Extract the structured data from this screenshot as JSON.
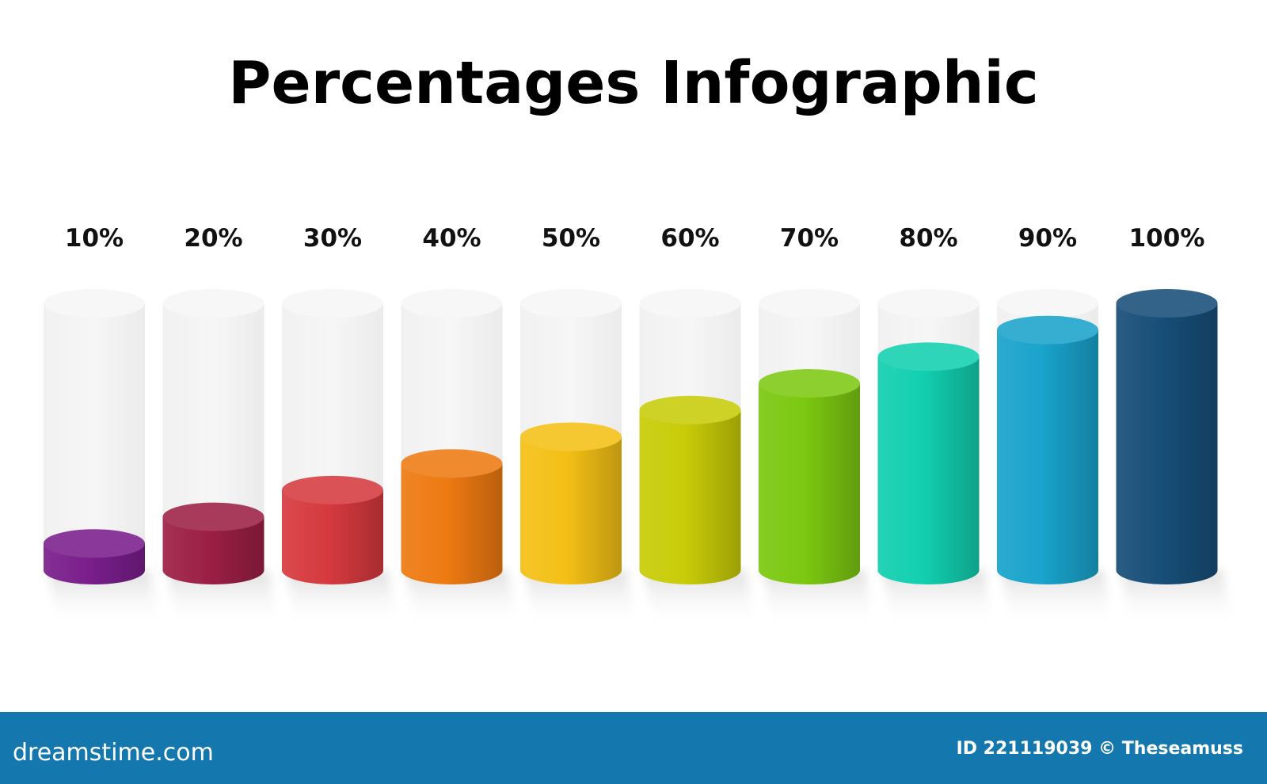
{
  "chart_data": {
    "type": "bar",
    "title": "Percentages Infographic",
    "categories": [
      "10%",
      "20%",
      "30%",
      "40%",
      "50%",
      "60%",
      "70%",
      "80%",
      "90%",
      "100%"
    ],
    "values": [
      10,
      20,
      30,
      40,
      50,
      60,
      70,
      80,
      90,
      100
    ],
    "ylim": [
      0,
      100
    ],
    "grid": false,
    "colors": [
      "#7a1e8c",
      "#9c1f45",
      "#d63a3f",
      "#ee7a12",
      "#f4c016",
      "#c8cc08",
      "#7cc811",
      "#12cfb0",
      "#1aa3cc",
      "#174e78"
    ]
  },
  "footer": {
    "logo": "dreamstime.com",
    "credit": "ID 221119039 © Theseamuss"
  }
}
